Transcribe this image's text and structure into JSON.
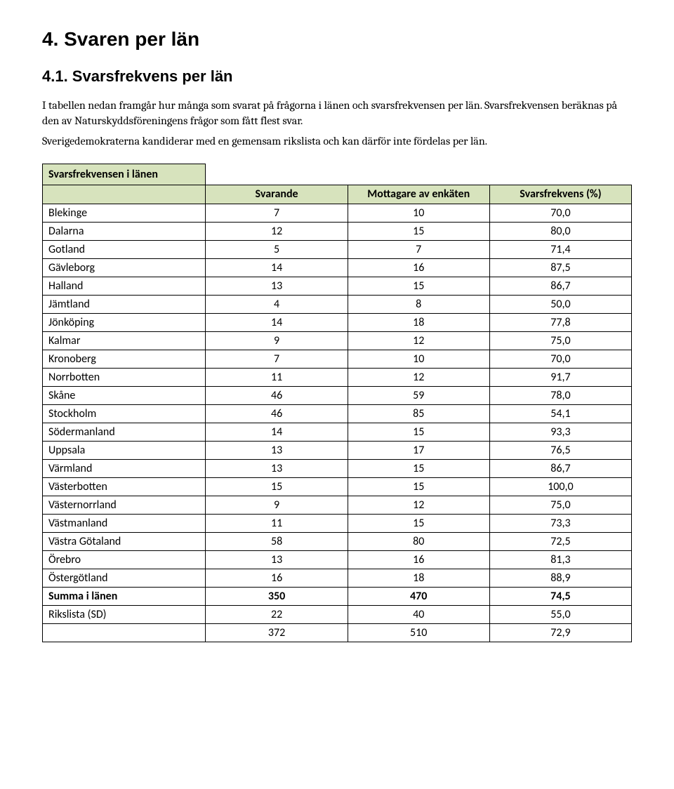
{
  "heading_main": "4. Svaren per län",
  "heading_sub": "4.1.   Svarsfrekvens per län",
  "para1": "I tabellen nedan framgår hur många som svarat på frågorna i länen och svarsfrekvensen per län. Svarsfrekvensen beräknas på den av Naturskyddsföreningens frågor som fått flest svar.",
  "para2": "Sverigedemokraterna kandiderar med en gemensam rikslista och kan därför inte fördelas per län.",
  "table": {
    "title": "Svarsfrekvensen i länen",
    "columns": [
      "",
      "Svarande",
      "Mottagare av enkäten",
      "Svarsfrekvens (%)"
    ],
    "rows": [
      {
        "label": "Blekinge",
        "a": "7",
        "b": "10",
        "c": "70,0"
      },
      {
        "label": "Dalarna",
        "a": "12",
        "b": "15",
        "c": "80,0"
      },
      {
        "label": "Gotland",
        "a": "5",
        "b": "7",
        "c": "71,4"
      },
      {
        "label": "Gävleborg",
        "a": "14",
        "b": "16",
        "c": "87,5"
      },
      {
        "label": "Halland",
        "a": "13",
        "b": "15",
        "c": "86,7"
      },
      {
        "label": "Jämtland",
        "a": "4",
        "b": "8",
        "c": "50,0"
      },
      {
        "label": "Jönköping",
        "a": "14",
        "b": "18",
        "c": "77,8"
      },
      {
        "label": "Kalmar",
        "a": "9",
        "b": "12",
        "c": "75,0"
      },
      {
        "label": "Kronoberg",
        "a": "7",
        "b": "10",
        "c": "70,0"
      },
      {
        "label": "Norrbotten",
        "a": "11",
        "b": "12",
        "c": "91,7"
      },
      {
        "label": "Skåne",
        "a": "46",
        "b": "59",
        "c": "78,0"
      },
      {
        "label": "Stockholm",
        "a": "46",
        "b": "85",
        "c": "54,1"
      },
      {
        "label": "Södermanland",
        "a": "14",
        "b": "15",
        "c": "93,3"
      },
      {
        "label": "Uppsala",
        "a": "13",
        "b": "17",
        "c": "76,5"
      },
      {
        "label": "Värmland",
        "a": "13",
        "b": "15",
        "c": "86,7"
      },
      {
        "label": "Västerbotten",
        "a": "15",
        "b": "15",
        "c": "100,0"
      },
      {
        "label": "Västernorrland",
        "a": "9",
        "b": "12",
        "c": "75,0"
      },
      {
        "label": "Västmanland",
        "a": "11",
        "b": "15",
        "c": "73,3"
      },
      {
        "label": "Västra Götaland",
        "a": "58",
        "b": "80",
        "c": "72,5"
      },
      {
        "label": "Örebro",
        "a": "13",
        "b": "16",
        "c": "81,3"
      },
      {
        "label": "Östergötland",
        "a": "16",
        "b": "18",
        "c": "88,9"
      }
    ],
    "summary": {
      "label": "Summa i länen",
      "a": "350",
      "b": "470",
      "c": "74,5"
    },
    "rikslista": {
      "label": "Rikslista (SD)",
      "a": "22",
      "b": "40",
      "c": "55,0"
    },
    "total": {
      "label": "",
      "a": "372",
      "b": "510",
      "c": "72,9"
    }
  },
  "colors": {
    "header_bg": "#d7e3bd",
    "border": "#000000",
    "text": "#000000",
    "background": "#ffffff"
  },
  "fonts": {
    "heading_family": "Arial",
    "body_family": "Cambria",
    "table_family": "Calibri",
    "h1_size_pt": 21,
    "h2_size_pt": 16,
    "body_size_pt": 12,
    "table_size_pt": 12
  }
}
